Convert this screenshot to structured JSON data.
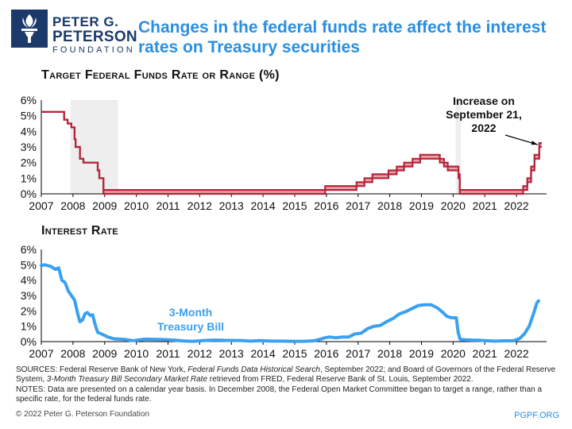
{
  "logo": {
    "line1": "PETER G.",
    "line2": "PETERSON",
    "line3": "FOUNDATION"
  },
  "title": "Changes in the federal funds rate affect the interest rates on Treasury securities",
  "footer": {
    "sources_a": "SOURCES: Federal Reserve Bank of New York, ",
    "sources_b": "Federal Funds Data Historical Search",
    "sources_c": ", September 2022; and Board of Governors of the Federal Reserve System, ",
    "sources_d": "3-Month Treasury Bill Secondary Market Rate",
    "sources_e": " retrieved from FRED, Federal Reserve Bank of St. Louis, September 2022.",
    "notes": "NOTES: Data are presented on a calendar year basis. In December 2008, the Federal Open Market Committee began to target a range, rather than a specific rate, for the federal funds rate.",
    "copyright": "© 2022 Peter G. Peterson Foundation",
    "site": "PGPF.ORG"
  },
  "chart_data": [
    {
      "type": "line",
      "title": "Target Federal Funds Rate or Range (%)",
      "x_ticks": [
        "2007",
        "2008",
        "2009",
        "2010",
        "2011",
        "2012",
        "2013",
        "2014",
        "2015",
        "2016",
        "2017",
        "2018",
        "2019",
        "2020",
        "2021",
        "2022"
      ],
      "y_ticks": [
        "0%",
        "1%",
        "2%",
        "3%",
        "4%",
        "5%",
        "6%"
      ],
      "xlim": [
        2007,
        2022.95
      ],
      "ylim": [
        0,
        6
      ],
      "grid": false,
      "colors": {
        "line": "#b5243a",
        "band": "#e8a0a8",
        "shade": "#eeeeee"
      },
      "shaded_periods": [
        [
          2007.92,
          2009.42
        ],
        [
          2020.08,
          2020.25
        ]
      ],
      "annotation": {
        "lines": [
          "Increase on",
          "September 21,",
          "2022"
        ],
        "x": 2022.72,
        "y": 3.25
      },
      "series": [
        {
          "kind": "range",
          "points": [
            [
              2007.0,
              5.25,
              5.25
            ],
            [
              2007.7,
              5.25,
              5.25
            ],
            [
              2007.72,
              4.75,
              4.75
            ],
            [
              2007.83,
              4.5,
              4.5
            ],
            [
              2007.95,
              4.25,
              4.25
            ],
            [
              2008.05,
              3.5,
              3.5
            ],
            [
              2008.08,
              3.0,
              3.0
            ],
            [
              2008.22,
              2.25,
              2.25
            ],
            [
              2008.33,
              2.0,
              2.0
            ],
            [
              2008.78,
              1.5,
              1.5
            ],
            [
              2008.83,
              1.0,
              1.0
            ],
            [
              2008.96,
              0,
              0.25
            ],
            [
              2015.96,
              0.25,
              0.5
            ],
            [
              2016.95,
              0.5,
              0.75
            ],
            [
              2017.2,
              0.75,
              1.0
            ],
            [
              2017.45,
              1.0,
              1.25
            ],
            [
              2017.96,
              1.25,
              1.5
            ],
            [
              2018.22,
              1.5,
              1.75
            ],
            [
              2018.45,
              1.75,
              2.0
            ],
            [
              2018.72,
              2.0,
              2.25
            ],
            [
              2018.96,
              2.25,
              2.5
            ],
            [
              2019.58,
              2.0,
              2.25
            ],
            [
              2019.71,
              1.75,
              2.0
            ],
            [
              2019.83,
              1.5,
              1.75
            ],
            [
              2020.17,
              1.0,
              1.25
            ],
            [
              2020.21,
              0,
              0.25
            ],
            [
              2022.21,
              0.25,
              0.5
            ],
            [
              2022.34,
              0.75,
              1.0
            ],
            [
              2022.46,
              1.5,
              1.75
            ],
            [
              2022.57,
              2.25,
              2.5
            ],
            [
              2022.72,
              3.0,
              3.25
            ],
            [
              2022.8,
              3.0,
              3.25
            ]
          ]
        }
      ]
    },
    {
      "type": "line",
      "title": "Interest Rate",
      "x_ticks": [
        "2007",
        "2008",
        "2009",
        "2010",
        "2011",
        "2012",
        "2013",
        "2014",
        "2015",
        "2016",
        "2017",
        "2018",
        "2019",
        "2020",
        "2021",
        "2022"
      ],
      "y_ticks": [
        "0%",
        "1%",
        "2%",
        "3%",
        "4%",
        "5%",
        "6%"
      ],
      "xlim": [
        2007,
        2022.95
      ],
      "ylim": [
        0,
        6
      ],
      "grid": false,
      "colors": {
        "line": "#3aa0f0"
      },
      "series": [
        {
          "name": "3-Month Treasury Bill",
          "points": [
            [
              2007.0,
              4.95
            ],
            [
              2007.1,
              5.0
            ],
            [
              2007.3,
              4.9
            ],
            [
              2007.45,
              4.7
            ],
            [
              2007.55,
              4.8
            ],
            [
              2007.65,
              4.0
            ],
            [
              2007.75,
              3.85
            ],
            [
              2007.85,
              3.3
            ],
            [
              2007.95,
              3.0
            ],
            [
              2008.05,
              2.7
            ],
            [
              2008.15,
              1.8
            ],
            [
              2008.22,
              1.3
            ],
            [
              2008.3,
              1.4
            ],
            [
              2008.38,
              1.8
            ],
            [
              2008.45,
              1.9
            ],
            [
              2008.55,
              1.7
            ],
            [
              2008.62,
              1.75
            ],
            [
              2008.7,
              1.1
            ],
            [
              2008.78,
              0.6
            ],
            [
              2008.9,
              0.5
            ],
            [
              2009.1,
              0.3
            ],
            [
              2009.3,
              0.18
            ],
            [
              2009.6,
              0.15
            ],
            [
              2009.9,
              0.06
            ],
            [
              2010.1,
              0.12
            ],
            [
              2010.3,
              0.16
            ],
            [
              2010.5,
              0.15
            ],
            [
              2010.7,
              0.14
            ],
            [
              2010.9,
              0.13
            ],
            [
              2011.2,
              0.1
            ],
            [
              2011.5,
              0.04
            ],
            [
              2011.8,
              0.02
            ],
            [
              2012.2,
              0.08
            ],
            [
              2012.5,
              0.1
            ],
            [
              2012.9,
              0.08
            ],
            [
              2013.3,
              0.07
            ],
            [
              2013.6,
              0.03
            ],
            [
              2013.9,
              0.06
            ],
            [
              2014.3,
              0.03
            ],
            [
              2014.6,
              0.03
            ],
            [
              2014.9,
              0.02
            ],
            [
              2015.3,
              0.02
            ],
            [
              2015.6,
              0.05
            ],
            [
              2015.8,
              0.15
            ],
            [
              2015.95,
              0.25
            ],
            [
              2016.1,
              0.3
            ],
            [
              2016.3,
              0.25
            ],
            [
              2016.5,
              0.3
            ],
            [
              2016.7,
              0.3
            ],
            [
              2016.9,
              0.5
            ],
            [
              2017.1,
              0.55
            ],
            [
              2017.3,
              0.85
            ],
            [
              2017.5,
              1.0
            ],
            [
              2017.7,
              1.05
            ],
            [
              2017.9,
              1.3
            ],
            [
              2018.1,
              1.5
            ],
            [
              2018.3,
              1.8
            ],
            [
              2018.5,
              1.95
            ],
            [
              2018.7,
              2.15
            ],
            [
              2018.9,
              2.35
            ],
            [
              2019.1,
              2.4
            ],
            [
              2019.3,
              2.4
            ],
            [
              2019.5,
              2.2
            ],
            [
              2019.65,
              1.95
            ],
            [
              2019.8,
              1.65
            ],
            [
              2019.95,
              1.55
            ],
            [
              2020.1,
              1.55
            ],
            [
              2020.16,
              0.6
            ],
            [
              2020.22,
              0.15
            ],
            [
              2020.4,
              0.12
            ],
            [
              2020.6,
              0.1
            ],
            [
              2020.8,
              0.09
            ],
            [
              2021.0,
              0.06
            ],
            [
              2021.3,
              0.03
            ],
            [
              2021.6,
              0.05
            ],
            [
              2021.9,
              0.05
            ],
            [
              2022.1,
              0.2
            ],
            [
              2022.25,
              0.5
            ],
            [
              2022.4,
              1.0
            ],
            [
              2022.55,
              1.9
            ],
            [
              2022.65,
              2.55
            ],
            [
              2022.7,
              2.65
            ]
          ]
        }
      ]
    }
  ]
}
